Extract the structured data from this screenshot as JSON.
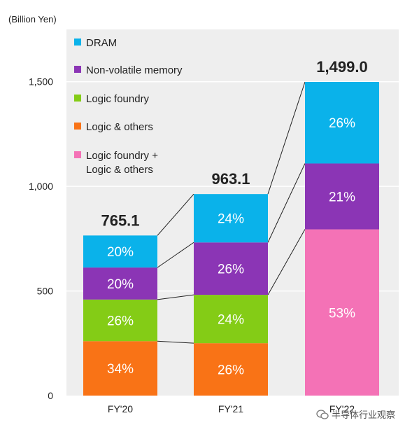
{
  "chart_data": {
    "type": "bar",
    "stacked": true,
    "unit_label": "(Billion Yen)",
    "categories": [
      "FY'20",
      "FY'21",
      "FY'22"
    ],
    "totals": [
      "765.1",
      "963.1",
      "1,499.0"
    ],
    "ylim": [
      0,
      1750
    ],
    "yticks": [
      {
        "value": 0,
        "label": "0"
      },
      {
        "value": 500,
        "label": "500"
      },
      {
        "value": 1000,
        "label": "1,000"
      },
      {
        "value": 1500,
        "label": "1,500"
      }
    ],
    "grid": true,
    "legend_position": "top-left",
    "series": [
      {
        "name": "Logic & others",
        "color": "#f97316",
        "values": [
          260.1,
          250.4,
          0
        ],
        "labels": [
          "34%",
          "26%",
          ""
        ]
      },
      {
        "name": "Logic foundry",
        "color": "#84cc16",
        "values": [
          198.9,
          231.1,
          0
        ],
        "labels": [
          "26%",
          "24%",
          ""
        ]
      },
      {
        "name": "Logic foundry +\nLogic & others",
        "color": "#f472b6",
        "values": [
          0,
          0,
          794.5
        ],
        "labels": [
          "",
          "",
          "53%"
        ]
      },
      {
        "name": "Non-volatile memory",
        "color": "#8b35b5",
        "values": [
          153.0,
          250.4,
          314.8
        ],
        "labels": [
          "20%",
          "26%",
          "21%"
        ]
      },
      {
        "name": "DRAM",
        "color": "#0ab2ea",
        "values": [
          153.1,
          231.2,
          389.7
        ],
        "labels": [
          "20%",
          "24%",
          "26%"
        ]
      }
    ],
    "legend_order": [
      "DRAM",
      "Non-volatile memory",
      "Logic foundry",
      "Logic & others",
      "Logic foundry +\nLogic & others"
    ]
  },
  "watermark": "半导体行业观察"
}
